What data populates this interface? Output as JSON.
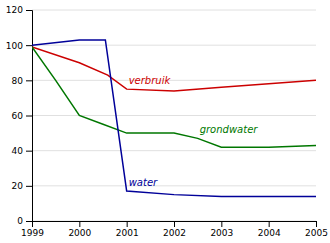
{
  "chart_data": {
    "type": "line",
    "series": [
      {
        "name": "verbruik",
        "color": "#cc0000",
        "x": [
          1999,
          2000,
          2000.6,
          2001,
          2002,
          2003,
          2004,
          2005
        ],
        "values": [
          99,
          90,
          83,
          75,
          74,
          76,
          78,
          80
        ]
      },
      {
        "name": "grondwater",
        "color": "#007700",
        "x": [
          1999,
          1999.5,
          2000,
          2000.5,
          2001,
          2001.5,
          2002,
          2002.5,
          2003,
          2004,
          2005
        ],
        "values": [
          99,
          80,
          60,
          55,
          50,
          50,
          50,
          47,
          42,
          42,
          43
        ]
      },
      {
        "name": "water",
        "color": "#000099",
        "x": [
          1999,
          2000,
          2000.55,
          2001,
          2002,
          2003,
          2004,
          2005
        ],
        "values": [
          100,
          103,
          103,
          17,
          15,
          14,
          14,
          14
        ]
      }
    ],
    "xlim": [
      1999,
      2005
    ],
    "xticks": [
      1999,
      2000,
      2001,
      2002,
      2003,
      2004,
      2005
    ],
    "ylim": [
      0,
      120
    ],
    "yticks": [
      0,
      20,
      40,
      60,
      80,
      100,
      120
    ],
    "grid": true
  }
}
